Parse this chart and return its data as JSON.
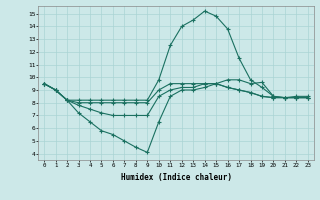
{
  "xlabel": "Humidex (Indice chaleur)",
  "bg_color": "#cce8e8",
  "line_color": "#1a7060",
  "grid_color": "#aad4d4",
  "xlim": [
    -0.5,
    23.5
  ],
  "ylim": [
    3.5,
    15.6
  ],
  "xticks": [
    0,
    1,
    2,
    3,
    4,
    5,
    6,
    7,
    8,
    9,
    10,
    11,
    12,
    13,
    14,
    15,
    16,
    17,
    18,
    19,
    20,
    21,
    22,
    23
  ],
  "yticks": [
    4,
    5,
    6,
    7,
    8,
    9,
    10,
    11,
    12,
    13,
    14,
    15
  ],
  "lines": [
    [
      9.5,
      9.0,
      8.2,
      7.2,
      6.5,
      5.8,
      5.5,
      5.0,
      4.5,
      4.1,
      6.5,
      8.5,
      9.0,
      9.0,
      9.2,
      9.5,
      9.8,
      9.8,
      9.5,
      9.6,
      8.5,
      8.4,
      8.5,
      8.5
    ],
    [
      9.5,
      9.0,
      8.2,
      7.8,
      7.5,
      7.2,
      7.0,
      7.0,
      7.0,
      7.0,
      8.5,
      9.0,
      9.2,
      9.2,
      9.5,
      9.5,
      9.2,
      9.0,
      8.8,
      8.5,
      8.4,
      8.4,
      8.4,
      8.4
    ],
    [
      9.5,
      9.0,
      8.2,
      8.0,
      8.0,
      8.0,
      8.0,
      8.0,
      8.0,
      8.0,
      9.0,
      9.5,
      9.5,
      9.5,
      9.5,
      9.5,
      9.2,
      9.0,
      8.8,
      8.5,
      8.4,
      8.4,
      8.4,
      8.4
    ],
    [
      9.5,
      9.0,
      8.2,
      8.2,
      8.2,
      8.2,
      8.2,
      8.2,
      8.2,
      8.2,
      9.8,
      12.5,
      14.0,
      14.5,
      15.2,
      14.8,
      13.8,
      11.5,
      9.8,
      9.2,
      8.5,
      8.4,
      8.4,
      8.4
    ]
  ]
}
